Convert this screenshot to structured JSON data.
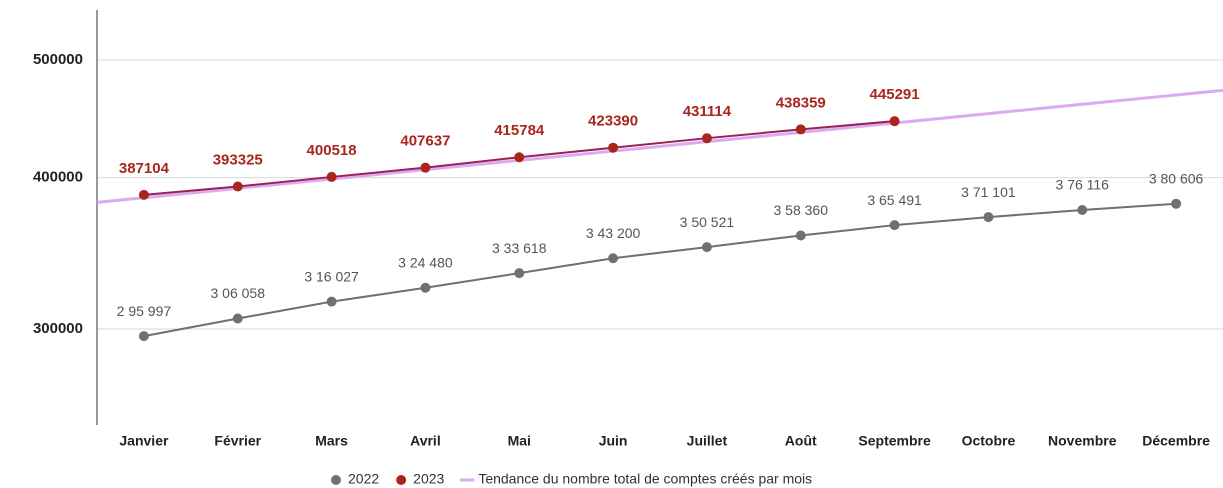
{
  "chart_data": {
    "type": "line",
    "categories": [
      "Janvier",
      "Février",
      "Mars",
      "Avril",
      "Mai",
      "Juin",
      "Juillet",
      "Août",
      "Septembre",
      "Octobre",
      "Novembre",
      "Décembre"
    ],
    "series": [
      {
        "name": "2022",
        "color": "#707070",
        "values": [
          295997,
          306058,
          316027,
          324480,
          333618,
          343200,
          350521,
          358360,
          365491,
          371101,
          376116,
          380606
        ],
        "value_labels": [
          "2 95 997",
          "3 06 058",
          "3 16 027",
          "3 24 480",
          "3 33 618",
          "3 43 200",
          "3 50 521",
          "3 58 360",
          "3 65 491",
          "3 71 101",
          "3 76 116",
          "3 80 606"
        ]
      },
      {
        "name": "2023",
        "color": "#a8261e",
        "values": [
          387104,
          393325,
          400518,
          407637,
          415784,
          423390,
          431114,
          438359,
          445291,
          null,
          null,
          null
        ]
      },
      {
        "name": "Tendance du nombre total de comptes créés par mois",
        "color": "#dcaaf2",
        "values": [
          385000,
          391900,
          398900,
          406100,
          413300,
          420700,
          428300,
          435900,
          443700,
          451700,
          459800,
          468000
        ]
      }
    ],
    "ylim": [
      250000,
      550000
    ],
    "yticks": [
      300000,
      400000,
      500000
    ],
    "log_scale": true,
    "grid": true,
    "legend": "bottom"
  }
}
